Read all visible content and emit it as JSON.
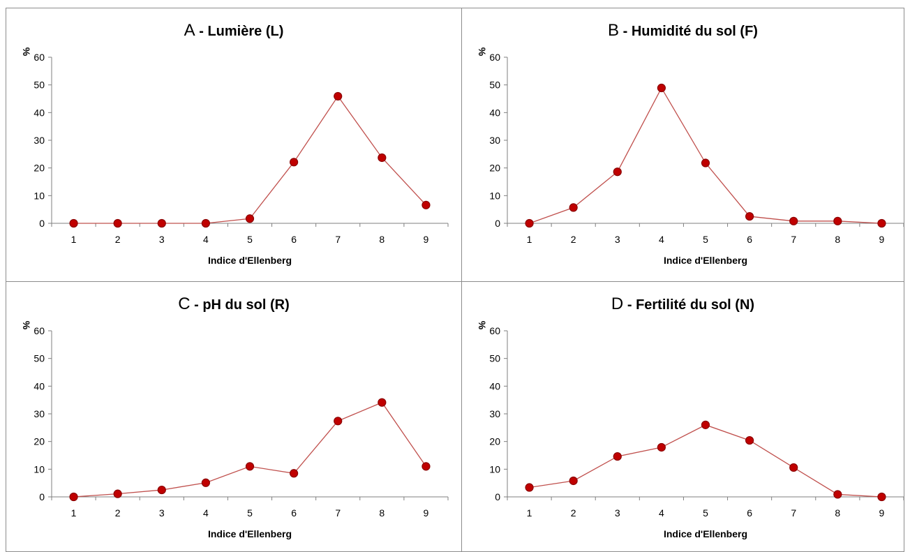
{
  "colors": {
    "line": "#c0504d",
    "marker_fill": "#c00000",
    "marker_edge": "#8b0000",
    "axis": "#7f7f7f"
  },
  "chart_data": [
    {
      "type": "line",
      "title_letter": "A",
      "title_sep": "-",
      "title": "Lumière (L)",
      "xlabel": "Indice d'Ellenberg",
      "ylabel": "%",
      "categories": [
        "1",
        "2",
        "3",
        "4",
        "5",
        "6",
        "7",
        "8",
        "9"
      ],
      "values": [
        0,
        0,
        0,
        0,
        1.7,
        22.1,
        45.9,
        23.7,
        6.6
      ],
      "ylim": [
        0,
        60
      ],
      "yticks": [
        "0",
        "10",
        "20",
        "30",
        "40",
        "50",
        "60"
      ],
      "grid": false,
      "legend": "none"
    },
    {
      "type": "line",
      "title_letter": "B",
      "title_sep": "-",
      "title": "Humidité du sol (F)",
      "xlabel": "Indice d'Ellenberg",
      "ylabel": "%",
      "categories": [
        "1",
        "2",
        "3",
        "4",
        "5",
        "6",
        "7",
        "8",
        "9"
      ],
      "values": [
        0,
        5.7,
        18.6,
        48.9,
        21.8,
        2.5,
        0.8,
        0.8,
        0
      ],
      "ylim": [
        0,
        60
      ],
      "yticks": [
        "0",
        "10",
        "20",
        "30",
        "40",
        "50",
        "60"
      ],
      "grid": false,
      "legend": "none"
    },
    {
      "type": "line",
      "title_letter": "C",
      "title_sep": "-",
      "title": "pH du sol (R)",
      "xlabel": "Indice d'Ellenberg",
      "ylabel": "%",
      "categories": [
        "1",
        "2",
        "3",
        "4",
        "5",
        "6",
        "7",
        "8",
        "9"
      ],
      "values": [
        0,
        1.1,
        2.5,
        5.1,
        11.0,
        8.5,
        27.4,
        34.1,
        11.0
      ],
      "ylim": [
        0,
        60
      ],
      "yticks": [
        "0",
        "10",
        "20",
        "30",
        "40",
        "50",
        "60"
      ],
      "grid": false,
      "legend": "none"
    },
    {
      "type": "line",
      "title_letter": "D",
      "title_sep": "-",
      "title": "Fertilité du sol (N)",
      "xlabel": "Indice d'Ellenberg",
      "ylabel": "%",
      "categories": [
        "1",
        "2",
        "3",
        "4",
        "5",
        "6",
        "7",
        "8",
        "9"
      ],
      "values": [
        3.4,
        5.8,
        14.6,
        17.9,
        26.0,
        20.4,
        10.6,
        0.9,
        0
      ],
      "ylim": [
        0,
        60
      ],
      "yticks": [
        "0",
        "10",
        "20",
        "30",
        "40",
        "50",
        "60"
      ],
      "grid": false,
      "legend": "none"
    }
  ]
}
